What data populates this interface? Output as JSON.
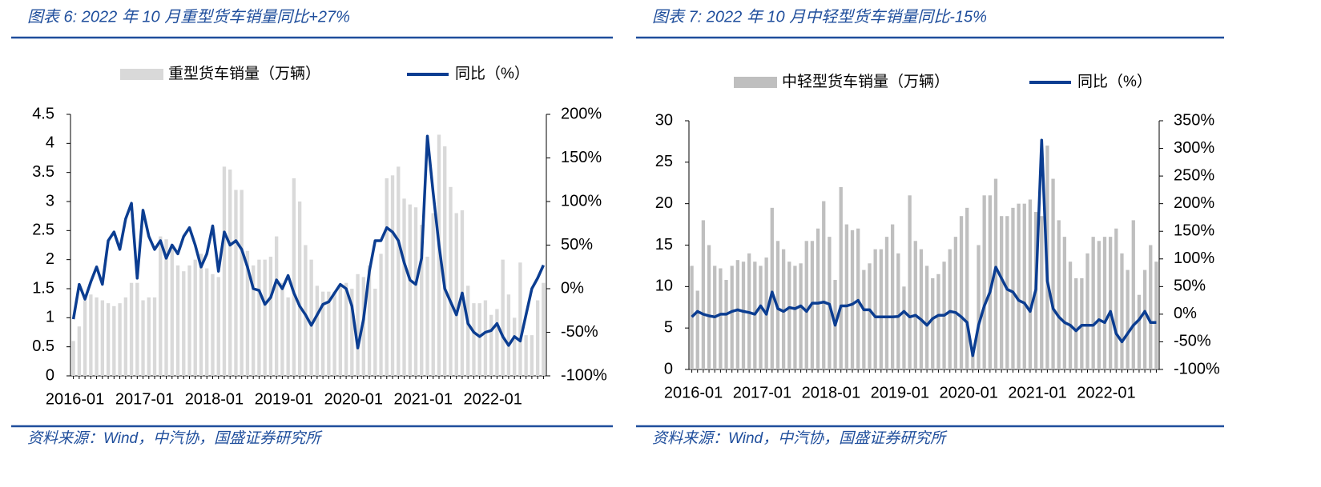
{
  "chart_data": [
    {
      "type": "bar-line",
      "title": "图表 6:  2022 年 10 月重型货车销量同比+27%",
      "source": "资料来源：Wind，中汽协，国盛证券研究所",
      "categories": [
        "2016-01",
        null,
        null,
        null,
        null,
        null,
        null,
        null,
        null,
        null,
        null,
        null,
        "2017-01",
        null,
        null,
        null,
        null,
        null,
        null,
        null,
        null,
        null,
        null,
        null,
        "2018-01",
        null,
        null,
        null,
        null,
        null,
        null,
        null,
        null,
        null,
        null,
        null,
        "2019-01",
        null,
        null,
        null,
        null,
        null,
        null,
        null,
        null,
        null,
        null,
        null,
        "2020-01",
        null,
        null,
        null,
        null,
        null,
        null,
        null,
        null,
        null,
        null,
        null,
        "2021-01",
        null,
        null,
        null,
        null,
        null,
        null,
        null,
        null,
        null,
        null,
        null,
        "2022-01",
        null,
        null,
        null,
        null,
        null,
        null,
        null,
        null,
        null
      ],
      "series": [
        {
          "name": "重型货车销量（万辆）",
          "color": "#d9d9d9",
          "values": [
            0.6,
            0.85,
            1.3,
            1.4,
            1.35,
            1.3,
            1.25,
            1.2,
            1.25,
            1.35,
            1.6,
            1.6,
            1.3,
            1.35,
            1.35,
            2.4,
            2.35,
            2.2,
            1.9,
            1.8,
            1.9,
            2.0,
            2.1,
            1.85,
            1.75,
            1.7,
            3.6,
            3.55,
            3.2,
            3.2,
            2.15,
            1.9,
            2.0,
            2.0,
            2.05,
            2.4,
            1.6,
            1.35,
            3.4,
            3.0,
            2.25,
            2.0,
            1.55,
            1.45,
            1.45,
            1.45,
            1.55,
            1.6,
            1.5,
            1.75,
            1.7,
            1.9,
            1.5,
            2.1,
            3.4,
            3.45,
            3.6,
            3.05,
            2.95,
            2.9,
            2.6,
            2.05,
            2.8,
            4.15,
            3.95,
            3.25,
            2.8,
            2.85,
            1.55,
            1.25,
            1.25,
            1.3,
            1.05,
            1.15,
            2.0,
            1.4,
            1.0,
            1.95,
            0.7,
            0.7,
            1.3,
            1.6
          ]
        },
        {
          "name": "同比（%）",
          "color": "#0b3d91",
          "axis": "y2",
          "values": [
            -35,
            5,
            -12,
            8,
            25,
            5,
            55,
            65,
            45,
            80,
            98,
            12,
            90,
            60,
            45,
            55,
            35,
            50,
            40,
            60,
            70,
            50,
            25,
            40,
            72,
            20,
            65,
            50,
            55,
            45,
            25,
            0,
            -2,
            -18,
            -10,
            10,
            0,
            15,
            -5,
            -20,
            -30,
            -42,
            -30,
            -18,
            -15,
            -5,
            5,
            0,
            -20,
            -68,
            -35,
            20,
            55,
            55,
            70,
            65,
            55,
            30,
            10,
            5,
            35,
            175,
            110,
            50,
            0,
            -15,
            -30,
            -5,
            -40,
            -50,
            -55,
            -50,
            -48,
            -40,
            -55,
            -65,
            -55,
            -60,
            -30,
            0,
            12,
            27
          ]
        }
      ],
      "ylim": [
        0,
        4.5
      ],
      "yticks": [
        0,
        0.5,
        1,
        1.5,
        2,
        2.5,
        3,
        3.5,
        4,
        4.5
      ],
      "y2lim": [
        -100,
        200
      ],
      "y2ticks": [
        {
          "value": -100,
          "label": "-100%"
        },
        {
          "value": -50,
          "label": "-50%"
        },
        {
          "value": 0,
          "label": "0%"
        },
        {
          "value": 50,
          "label": "50%"
        },
        {
          "value": 100,
          "label": "100%"
        },
        {
          "value": 150,
          "label": "150%"
        },
        {
          "value": 200,
          "label": "200%"
        }
      ]
    },
    {
      "type": "bar-line",
      "title": "图表 7:  2022 年 10 月中轻型货车销量同比-15%",
      "source": "资料来源：Wind，中汽协，国盛证券研究所",
      "categories": [
        "2016-01",
        null,
        null,
        null,
        null,
        null,
        null,
        null,
        null,
        null,
        null,
        null,
        "2017-01",
        null,
        null,
        null,
        null,
        null,
        null,
        null,
        null,
        null,
        null,
        null,
        "2018-01",
        null,
        null,
        null,
        null,
        null,
        null,
        null,
        null,
        null,
        null,
        null,
        "2019-01",
        null,
        null,
        null,
        null,
        null,
        null,
        null,
        null,
        null,
        null,
        null,
        "2020-01",
        null,
        null,
        null,
        null,
        null,
        null,
        null,
        null,
        null,
        null,
        null,
        "2021-01",
        null,
        null,
        null,
        null,
        null,
        null,
        null,
        null,
        null,
        null,
        null,
        "2022-01",
        null,
        null,
        null,
        null,
        null,
        null,
        null,
        null,
        null
      ],
      "series": [
        {
          "name": "中轻型货车销量（万辆）",
          "color": "#bfbfbf",
          "values": [
            12.5,
            9.5,
            18,
            15,
            12.5,
            12.2,
            10.8,
            12.5,
            13.2,
            13,
            14,
            13,
            12.5,
            13.5,
            19.5,
            15.5,
            14.5,
            13,
            12.5,
            12.8,
            15.5,
            15.5,
            17,
            20.3,
            16,
            10.8,
            22,
            17.5,
            16.8,
            17,
            12,
            12.8,
            14.5,
            14.5,
            16,
            17.5,
            14,
            10,
            21,
            15.5,
            14.5,
            12.5,
            11,
            11.5,
            13,
            14.5,
            16,
            18.5,
            19.5,
            2.5,
            15,
            21,
            21,
            23,
            18.5,
            18.5,
            19.5,
            20,
            20,
            20.5,
            19,
            18.5,
            27,
            23,
            18,
            16,
            13,
            11,
            11,
            14,
            16,
            15.5,
            16,
            16,
            17,
            14,
            12,
            18,
            9,
            12,
            15,
            13
          ]
        },
        {
          "name": "同比（%）",
          "color": "#0b3d91",
          "axis": "y2",
          "values": [
            -5,
            5,
            0,
            -3,
            -5,
            0,
            0,
            5,
            8,
            5,
            3,
            0,
            15,
            0,
            40,
            10,
            5,
            12,
            10,
            15,
            5,
            20,
            20,
            22,
            18,
            -20,
            15,
            15,
            18,
            25,
            8,
            8,
            -5,
            -5,
            -5,
            -5,
            -4,
            5,
            -5,
            -2,
            -10,
            -20,
            -8,
            -2,
            -2,
            5,
            3,
            -5,
            -15,
            -75,
            -20,
            15,
            40,
            85,
            65,
            45,
            40,
            25,
            20,
            5,
            45,
            315,
            60,
            10,
            -5,
            -15,
            -20,
            -30,
            -20,
            -20,
            -20,
            -10,
            -15,
            5,
            -35,
            -50,
            -35,
            -20,
            -10,
            5,
            -15,
            -15
          ]
        }
      ],
      "ylim": [
        0,
        30
      ],
      "yticks": [
        0,
        5,
        10,
        15,
        20,
        25,
        30
      ],
      "y2lim": [
        -100,
        350
      ],
      "y2ticks": [
        {
          "value": -100,
          "label": "-100%"
        },
        {
          "value": -50,
          "label": "-50%"
        },
        {
          "value": 0,
          "label": "0%"
        },
        {
          "value": 50,
          "label": "50%"
        },
        {
          "value": 100,
          "label": "100%"
        },
        {
          "value": 150,
          "label": "150%"
        },
        {
          "value": 200,
          "label": "200%"
        },
        {
          "value": 250,
          "label": "250%"
        },
        {
          "value": 300,
          "label": "300%"
        },
        {
          "value": 350,
          "label": "350%"
        }
      ]
    }
  ]
}
